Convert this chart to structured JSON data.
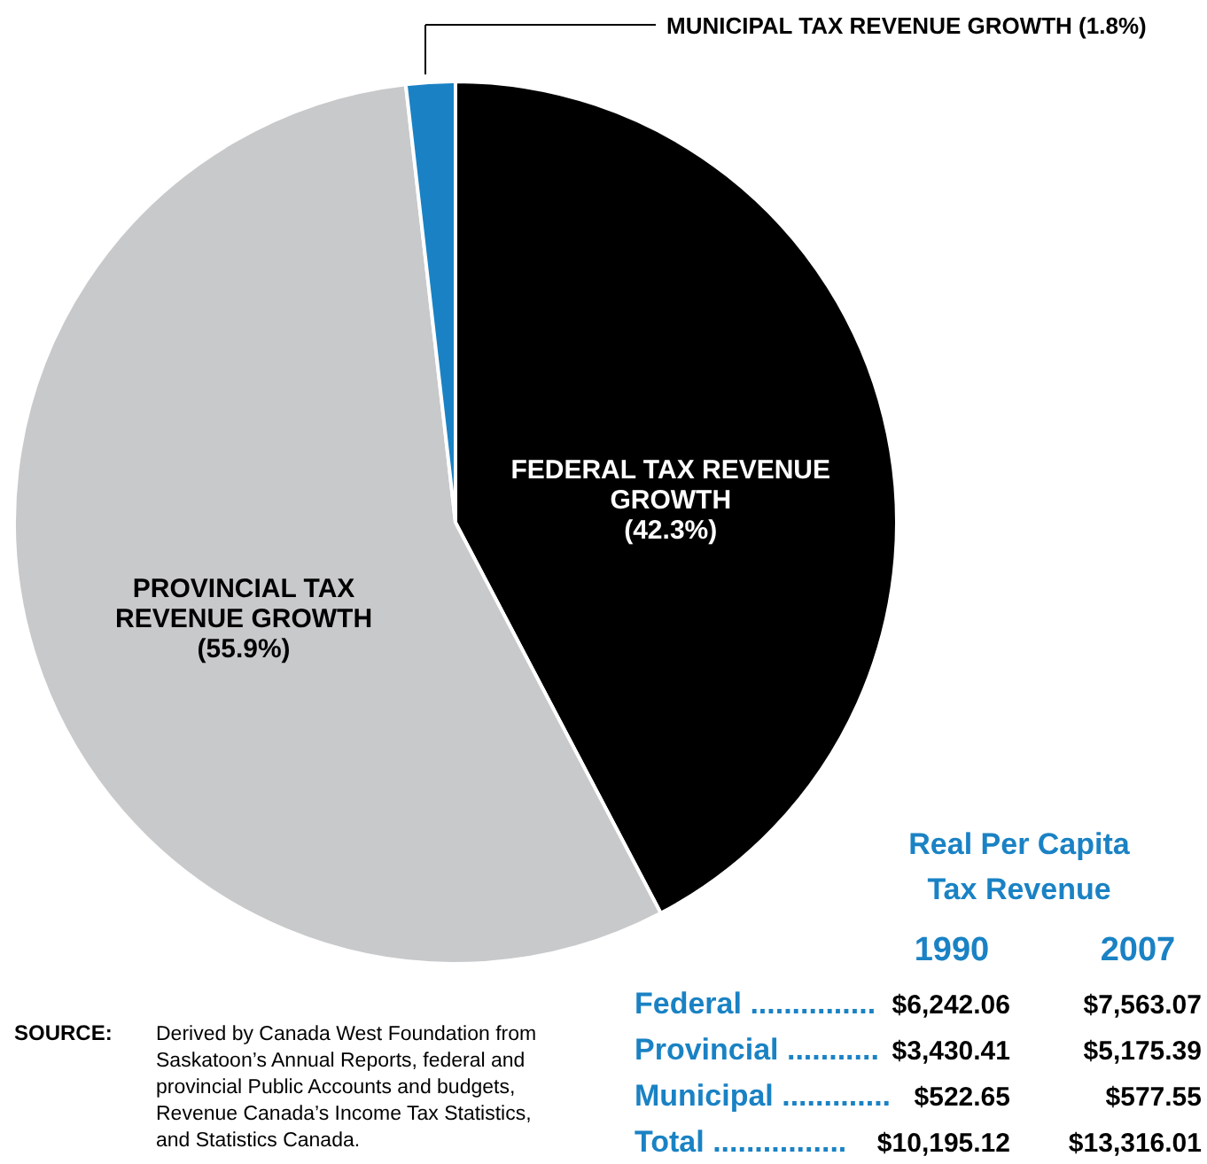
{
  "chart_data": {
    "type": "pie",
    "categories": [
      "FEDERAL TAX REVENUE GROWTH",
      "PROVINCIAL TAX REVENUE GROWTH",
      "MUNICIPAL TAX REVENUE GROWTH"
    ],
    "values": [
      42.3,
      55.9,
      1.8
    ],
    "value_labels": [
      "(42.3%)",
      "(55.9%)",
      "(1.8%)"
    ],
    "colors": [
      "#000000",
      "#c8c9cb",
      "#1a82c4"
    ],
    "annotations": [
      "Real Per Capita Tax Revenue",
      "1990",
      "2007",
      "Federal ...............",
      "$6,242.06",
      "$7,563.07",
      "Provincial ...........",
      "$3,430.41",
      "$5,175.39",
      "Municipal .............",
      "$522.65",
      "$577.55",
      "Total ................",
      "$10,195.12",
      "$13,316.01",
      "SOURCE: Derived by Canada West Foundation from Saskatoon’s Annual Reports, federal and provincial Public Accounts and budgets, Revenue Canada’s Income Tax Statistics, and Statistics Canada."
    ]
  }
}
